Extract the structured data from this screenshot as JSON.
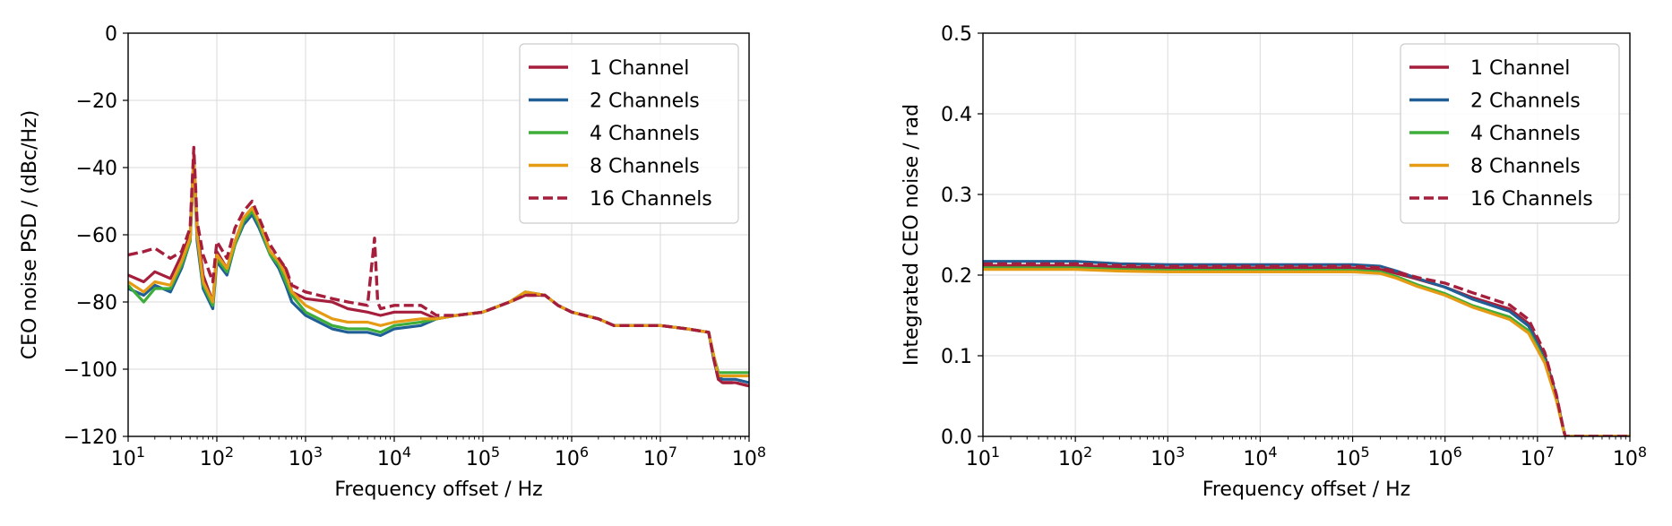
{
  "colors": {
    "1 Channel": "#a51f3c",
    "2 Channels": "#1f5f96",
    "4 Channels": "#3fad3a",
    "8 Channels": "#e69b15",
    "16 Channels": "#a51f3c"
  },
  "chart_data": [
    {
      "type": "line",
      "xscale": "log",
      "xlim": [
        10,
        100000000
      ],
      "ylim": [
        -120,
        0
      ],
      "xlabel": "Frequency offset / Hz",
      "ylabel": "CEO noise PSD / (dBc/Hz)",
      "xtick_base": "10",
      "xtick_exponents": [
        "1",
        "2",
        "3",
        "4",
        "5",
        "6",
        "7",
        "8"
      ],
      "yticks": [
        "0",
        "−20",
        "−40",
        "−60",
        "−80",
        "−100",
        "−120"
      ],
      "ytick_values": [
        0,
        -20,
        -40,
        -60,
        -80,
        -100,
        -120
      ],
      "grid": true,
      "legend_position": "top-right",
      "series": [
        {
          "name": "1 Channel",
          "style": "solid",
          "x": [
            10,
            15,
            20,
            30,
            40,
            50,
            55,
            60,
            70,
            90,
            100,
            130,
            160,
            200,
            250,
            300,
            400,
            500,
            600,
            700,
            1000,
            2000,
            3000,
            5000,
            7000,
            10000,
            20000,
            30000,
            50000,
            100000,
            200000,
            300000,
            500000,
            700000,
            1000000,
            2000000,
            3000000,
            5000000,
            10000000,
            20000000,
            35000000,
            40000000,
            45000000,
            50000000,
            60000000,
            70000000,
            100000000
          ],
          "y": [
            -72,
            -74,
            -71,
            -73,
            -66,
            -60,
            -36,
            -58,
            -72,
            -80,
            -65,
            -70,
            -62,
            -55,
            -52,
            -56,
            -65,
            -68,
            -70,
            -77,
            -79,
            -80,
            -82,
            -83,
            -84,
            -83,
            -83,
            -85,
            -84,
            -83,
            -80,
            -78,
            -78,
            -81,
            -83,
            -85,
            -87,
            -87,
            -87,
            -88,
            -89,
            -97,
            -103,
            -104,
            -104,
            -104,
            -105
          ]
        },
        {
          "name": "2 Channels",
          "style": "solid",
          "x": [
            10,
            15,
            20,
            30,
            40,
            50,
            55,
            60,
            70,
            90,
            100,
            130,
            160,
            200,
            250,
            300,
            400,
            500,
            600,
            700,
            1000,
            2000,
            3000,
            5000,
            7000,
            10000,
            20000,
            30000,
            50000,
            100000,
            200000,
            300000,
            500000,
            700000,
            1000000,
            2000000,
            3000000,
            5000000,
            10000000,
            20000000,
            35000000,
            40000000,
            45000000,
            50000000,
            60000000,
            70000000,
            100000000
          ],
          "y": [
            -76,
            -78,
            -75,
            -77,
            -70,
            -62,
            -38,
            -62,
            -76,
            -82,
            -68,
            -72,
            -63,
            -57,
            -54,
            -58,
            -66,
            -70,
            -75,
            -80,
            -84,
            -88,
            -89,
            -89,
            -90,
            -88,
            -87,
            -85,
            -84,
            -83,
            -80,
            -77,
            -78,
            -81,
            -83,
            -85,
            -87,
            -87,
            -87,
            -88,
            -89,
            -97,
            -102,
            -103,
            -103,
            -103,
            -104
          ]
        },
        {
          "name": "4 Channels",
          "style": "solid",
          "x": [
            10,
            15,
            20,
            30,
            40,
            50,
            55,
            60,
            70,
            90,
            100,
            130,
            160,
            200,
            250,
            300,
            400,
            500,
            600,
            700,
            1000,
            2000,
            3000,
            5000,
            7000,
            10000,
            20000,
            30000,
            50000,
            100000,
            200000,
            300000,
            500000,
            700000,
            1000000,
            2000000,
            3000000,
            5000000,
            10000000,
            20000000,
            35000000,
            40000000,
            45000000,
            50000000,
            60000000,
            70000000,
            100000000
          ],
          "y": [
            -75,
            -80,
            -76,
            -76,
            -69,
            -62,
            -38,
            -60,
            -75,
            -81,
            -67,
            -71,
            -63,
            -56,
            -53,
            -57,
            -66,
            -69,
            -74,
            -78,
            -83,
            -87,
            -88,
            -88,
            -89,
            -87,
            -86,
            -85,
            -84,
            -83,
            -80,
            -77,
            -78,
            -81,
            -83,
            -85,
            -87,
            -87,
            -87,
            -88,
            -89,
            -96,
            -101,
            -101,
            -101,
            -101,
            -101
          ]
        },
        {
          "name": "8 Channels",
          "style": "solid",
          "x": [
            10,
            15,
            20,
            30,
            40,
            50,
            55,
            60,
            70,
            90,
            100,
            130,
            160,
            200,
            250,
            300,
            400,
            500,
            600,
            700,
            1000,
            2000,
            3000,
            5000,
            7000,
            10000,
            20000,
            30000,
            50000,
            100000,
            200000,
            300000,
            500000,
            700000,
            1000000,
            2000000,
            3000000,
            5000000,
            10000000,
            20000000,
            35000000,
            40000000,
            45000000,
            50000000,
            60000000,
            70000000,
            100000000
          ],
          "y": [
            -74,
            -77,
            -74,
            -75,
            -68,
            -61,
            -37,
            -60,
            -74,
            -80,
            -66,
            -70,
            -62,
            -55,
            -52,
            -56,
            -65,
            -68,
            -72,
            -77,
            -81,
            -85,
            -86,
            -86,
            -87,
            -86,
            -85,
            -85,
            -84,
            -83,
            -80,
            -77,
            -78,
            -81,
            -83,
            -85,
            -87,
            -87,
            -87,
            -88,
            -89,
            -96,
            -102,
            -102,
            -102,
            -102,
            -102
          ]
        },
        {
          "name": "16 Channels",
          "style": "dashed",
          "x": [
            10,
            15,
            20,
            30,
            40,
            50,
            55,
            60,
            70,
            90,
            100,
            130,
            160,
            200,
            250,
            300,
            400,
            500,
            600,
            700,
            1000,
            2000,
            3000,
            5000,
            6000,
            6500,
            7000,
            10000,
            20000,
            30000,
            50000,
            100000,
            200000,
            300000,
            500000,
            700000,
            1000000,
            2000000,
            3000000,
            5000000,
            10000000,
            20000000,
            35000000,
            40000000,
            45000000,
            50000000,
            60000000,
            70000000,
            100000000
          ],
          "y": [
            -66,
            -65,
            -64,
            -67,
            -65,
            -58,
            -34,
            -56,
            -66,
            -74,
            -62,
            -67,
            -58,
            -53,
            -50,
            -55,
            -63,
            -67,
            -70,
            -75,
            -77,
            -79,
            -80,
            -81,
            -61,
            -80,
            -82,
            -81,
            -81,
            -84,
            -84,
            -83,
            -80,
            -78,
            -78,
            -81,
            -83,
            -85,
            -87,
            -87,
            -87,
            -88,
            -89,
            -97,
            -103,
            -104,
            -104,
            -104,
            -105
          ]
        }
      ]
    },
    {
      "type": "line",
      "xscale": "log",
      "xlim": [
        10,
        100000000
      ],
      "ylim": [
        0,
        0.5
      ],
      "xlabel": "Frequency offset / Hz",
      "ylabel": "Integrated CEO noise / rad",
      "xtick_base": "10",
      "xtick_exponents": [
        "1",
        "2",
        "3",
        "4",
        "5",
        "6",
        "7",
        "8"
      ],
      "yticks": [
        "0.5",
        "0.4",
        "0.3",
        "0.2",
        "0.1",
        "0.0"
      ],
      "ytick_values": [
        0.5,
        0.4,
        0.3,
        0.2,
        0.1,
        0.0
      ],
      "grid": true,
      "legend_position": "top-right",
      "series": [
        {
          "name": "1 Channel",
          "style": "solid",
          "x": [
            10,
            100,
            300,
            1000,
            10000,
            100000,
            200000,
            300000,
            500000,
            1000000,
            2000000,
            5000000,
            8000000,
            12000000,
            16000000,
            19000000,
            20000000,
            100000000
          ],
          "y": [
            0.212,
            0.212,
            0.21,
            0.209,
            0.209,
            0.209,
            0.207,
            0.202,
            0.195,
            0.185,
            0.172,
            0.158,
            0.14,
            0.1,
            0.05,
            0.01,
            0.0,
            0.0
          ]
        },
        {
          "name": "2 Channels",
          "style": "solid",
          "x": [
            10,
            100,
            300,
            1000,
            10000,
            100000,
            200000,
            300000,
            500000,
            1000000,
            2000000,
            5000000,
            8000000,
            12000000,
            16000000,
            19000000,
            20000000,
            100000000
          ],
          "y": [
            0.217,
            0.217,
            0.214,
            0.213,
            0.213,
            0.213,
            0.211,
            0.205,
            0.196,
            0.185,
            0.17,
            0.155,
            0.137,
            0.097,
            0.048,
            0.01,
            0.0,
            0.0
          ]
        },
        {
          "name": "4 Channels",
          "style": "solid",
          "x": [
            10,
            100,
            300,
            1000,
            10000,
            100000,
            200000,
            300000,
            500000,
            1000000,
            2000000,
            5000000,
            8000000,
            12000000,
            16000000,
            19000000,
            20000000,
            100000000
          ],
          "y": [
            0.209,
            0.209,
            0.207,
            0.206,
            0.206,
            0.206,
            0.204,
            0.198,
            0.188,
            0.177,
            0.162,
            0.148,
            0.131,
            0.093,
            0.046,
            0.009,
            0.0,
            0.0
          ]
        },
        {
          "name": "8 Channels",
          "style": "solid",
          "x": [
            10,
            100,
            300,
            1000,
            10000,
            100000,
            200000,
            300000,
            500000,
            1000000,
            2000000,
            5000000,
            8000000,
            12000000,
            16000000,
            19000000,
            20000000,
            100000000
          ],
          "y": [
            0.207,
            0.207,
            0.205,
            0.204,
            0.204,
            0.204,
            0.202,
            0.196,
            0.186,
            0.175,
            0.16,
            0.145,
            0.128,
            0.091,
            0.045,
            0.009,
            0.0,
            0.0
          ]
        },
        {
          "name": "16 Channels",
          "style": "dashed",
          "x": [
            10,
            100,
            300,
            1000,
            10000,
            100000,
            200000,
            300000,
            500000,
            1000000,
            2000000,
            5000000,
            8000000,
            12000000,
            16000000,
            19000000,
            20000000,
            100000000
          ],
          "y": [
            0.214,
            0.214,
            0.212,
            0.211,
            0.211,
            0.211,
            0.209,
            0.204,
            0.197,
            0.19,
            0.178,
            0.163,
            0.145,
            0.104,
            0.052,
            0.01,
            0.0,
            0.0
          ]
        }
      ]
    }
  ]
}
